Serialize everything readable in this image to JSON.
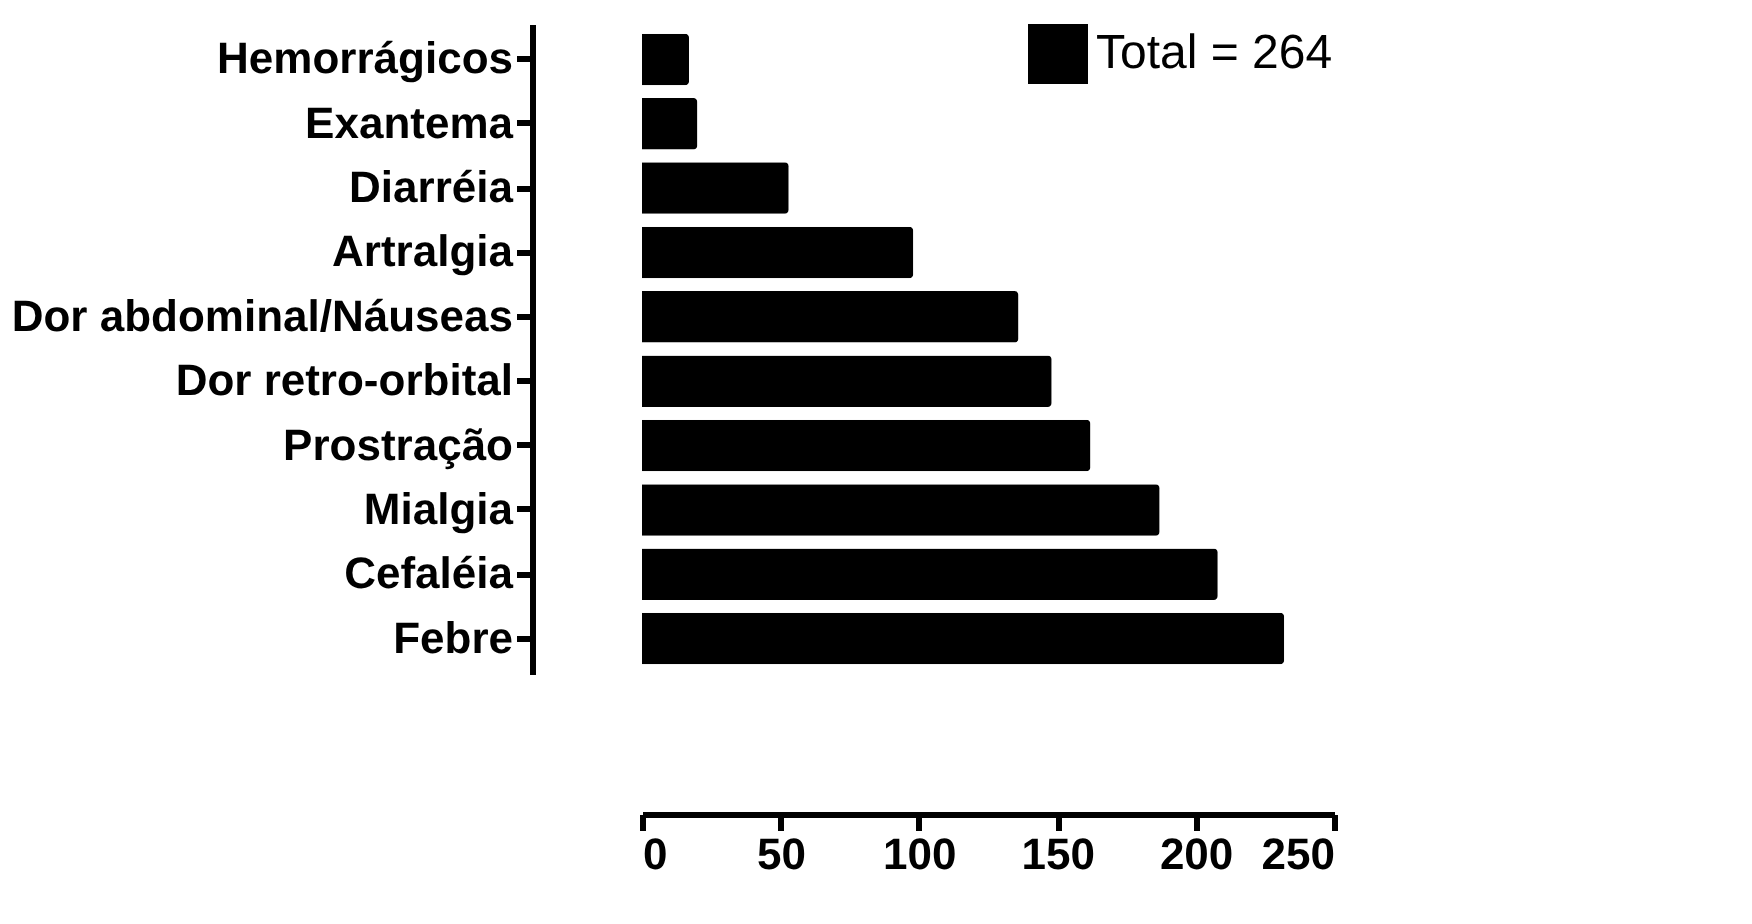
{
  "chart_data": {
    "type": "bar",
    "orientation": "horizontal",
    "categories": [
      "Hemorrágicos",
      "Exantema",
      "Diarréia",
      "Artralgia",
      "Dor abdominal/Náuseas",
      "Dor retro-orbital",
      "Prostração",
      "Mialgia",
      "Cefaléia",
      "Febre"
    ],
    "series": [
      {
        "name": "Total = 264",
        "color": "#000000",
        "values": [
          17,
          20,
          53,
          98,
          136,
          148,
          162,
          187,
          208,
          232
        ]
      }
    ],
    "xlim": [
      0,
      250
    ],
    "xticks": [
      0,
      50,
      100,
      150,
      200,
      250
    ],
    "grid": false,
    "legend": "top right"
  }
}
